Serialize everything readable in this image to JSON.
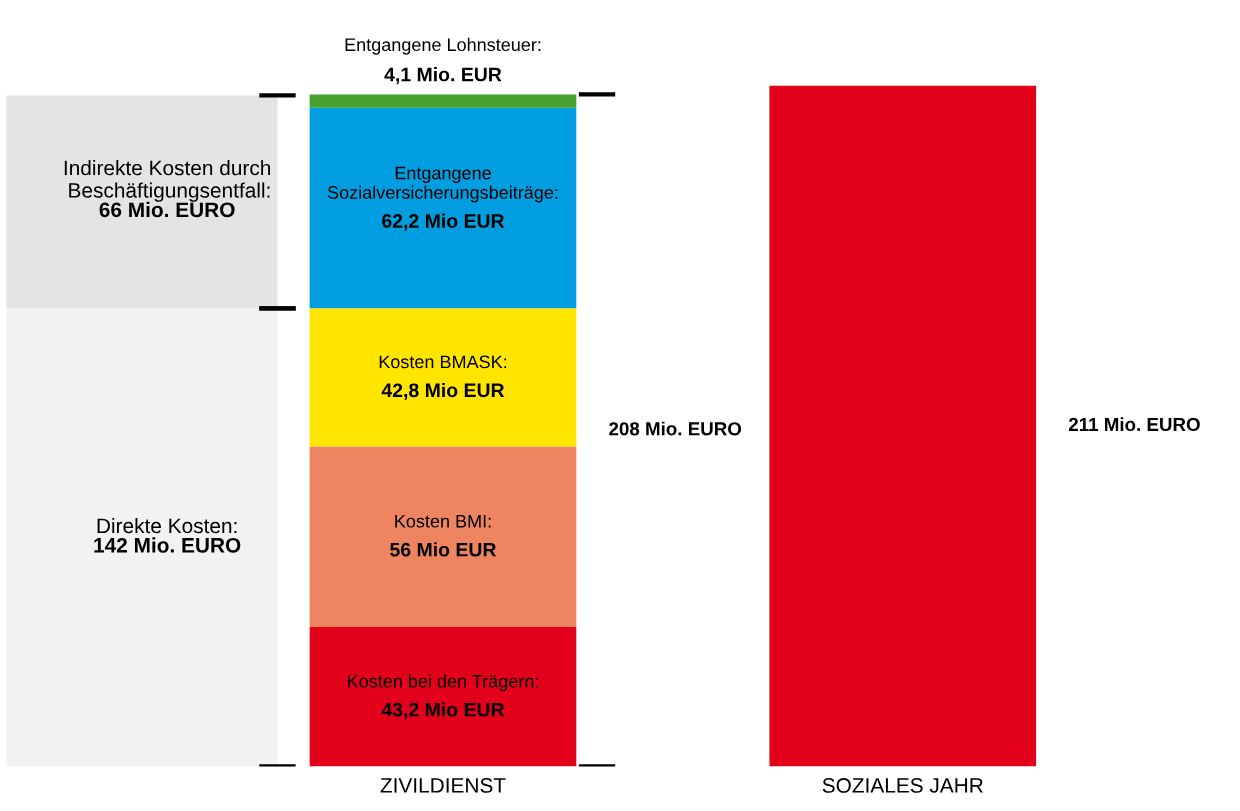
{
  "chart_data": {
    "type": "bar",
    "stacked": true,
    "categories": [
      "ZIVILDIENST",
      "SOZIALES JAHR"
    ],
    "series": [
      {
        "name": "Kosten bei den Trägern:",
        "color": "#e2001a",
        "values": [
          43.2,
          null
        ],
        "value_labels": [
          "43,2 Mio EUR",
          null
        ]
      },
      {
        "name": "Kosten BMI:",
        "color": "#ee8560",
        "values": [
          56,
          null
        ],
        "value_labels": [
          "56 Mio EUR",
          null
        ]
      },
      {
        "name": "Kosten BMASK:",
        "color": "#ffe500",
        "values": [
          42.8,
          null
        ],
        "value_labels": [
          "42,8 Mio EUR",
          null
        ]
      },
      {
        "name": "Entgangene\nSozialversicherungsbeiträge:",
        "color": "#009ee0",
        "values": [
          62.2,
          null
        ],
        "value_labels": [
          "62,2 Mio EUR",
          null
        ]
      },
      {
        "name": "Entgangene Lohnsteuer:",
        "color": "#46a22f",
        "values": [
          4.1,
          null
        ],
        "value_labels": [
          "4,1 Mio. EUR",
          null
        ]
      },
      {
        "color": "#e2001a",
        "values": [
          null,
          211
        ]
      }
    ],
    "totals": [
      "208 Mio. EURO",
      "211 Mio. EURO"
    ],
    "bands": [
      {
        "axis": "y",
        "from": 0,
        "to": 142,
        "label": "Direkte Kosten:\n142 Mio. EURO",
        "color": "#f2f2f2"
      },
      {
        "axis": "y",
        "from": 142,
        "to": 208,
        "label": "Indirekte Kosten durch\nBeschäftigungsentfall:\n66 Mio. EURO",
        "color": "#e4e4e4"
      }
    ]
  }
}
